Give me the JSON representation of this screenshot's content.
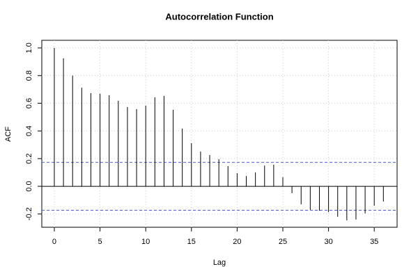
{
  "chart_data": {
    "type": "acf",
    "title": "Autocorrelation Function",
    "x_label": "Lag",
    "y_label": "ACF",
    "x": [
      0,
      1,
      2,
      3,
      4,
      5,
      6,
      7,
      8,
      9,
      10,
      11,
      12,
      13,
      14,
      15,
      16,
      17,
      18,
      19,
      20,
      21,
      22,
      23,
      24,
      25,
      26,
      27,
      28,
      29,
      30,
      31,
      32,
      33,
      34,
      35,
      36
    ],
    "values": [
      1.0,
      0.925,
      0.8,
      0.713,
      0.673,
      0.668,
      0.658,
      0.618,
      0.573,
      0.558,
      0.583,
      0.643,
      0.653,
      0.553,
      0.417,
      0.312,
      0.251,
      0.226,
      0.196,
      0.146,
      0.095,
      0.075,
      0.1,
      0.15,
      0.156,
      0.065,
      -0.05,
      -0.13,
      -0.17,
      -0.176,
      -0.186,
      -0.22,
      -0.246,
      -0.24,
      -0.196,
      -0.14,
      -0.11
    ],
    "color": "#000000",
    "confidence_bounds": [
      0.173,
      -0.173
    ],
    "bound_color": "#4a5fd6",
    "xlim": [
      -1.37,
      37.5
    ],
    "ylim": [
      -0.296,
      1.055
    ],
    "xticks": [
      0,
      5,
      10,
      15,
      20,
      25,
      30,
      35
    ],
    "yticks": [
      -0.2,
      {
        "value": 0,
        "label": "0.0"
      },
      0.2,
      0.4,
      0.6,
      0.8,
      {
        "value": 1,
        "label": "1.0"
      }
    ],
    "grid": true
  }
}
